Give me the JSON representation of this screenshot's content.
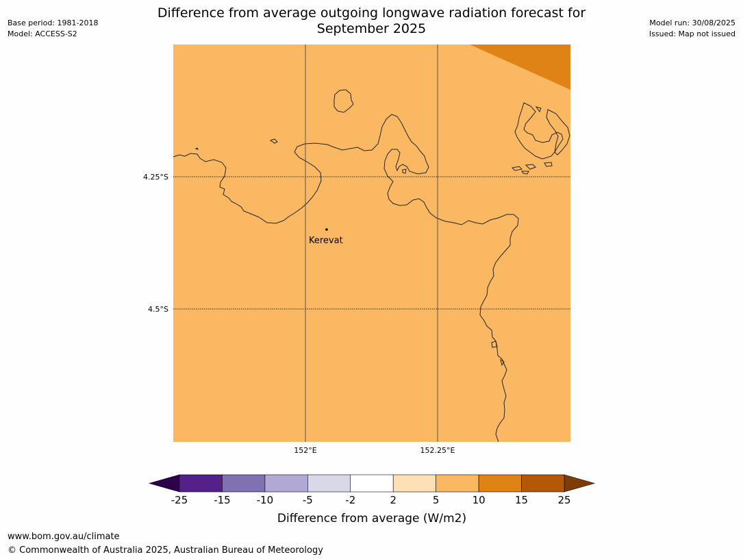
{
  "header": {
    "title_line1": "Difference from average outgoing longwave radiation forecast for",
    "title_line2": "September 2025",
    "base_period": "Base period: 1981-2018",
    "model": "Model: ACCESS-S2",
    "model_run": "Model run: 30/08/2025",
    "issued": "Issued: Map not issued"
  },
  "map": {
    "fill_color": "#fbb862",
    "corner_color": "#e08316",
    "place_name": "Kerevat",
    "lat_labels": [
      "4.25°S",
      "4.5°S"
    ],
    "lon_labels": [
      "152°E",
      "152.25°E"
    ]
  },
  "colorbar": {
    "label": "Difference from average (W/m2)",
    "ticks": [
      "-25",
      "-15",
      "-10",
      "-5",
      "-2",
      "2",
      "5",
      "10",
      "15",
      "25"
    ],
    "colors": [
      "#56208a",
      "#8072b0",
      "#b1a9d3",
      "#d9d8e9",
      "#ffffff",
      "#fee0b6",
      "#fbb862",
      "#e08316",
      "#b35806"
    ],
    "under_color": "#2d004b",
    "over_color": "#7f3b08"
  },
  "footer": {
    "url": "www.bom.gov.au/climate",
    "copyright": "© Commonwealth of Australia 2025, Australian Bureau of Meteorology"
  }
}
